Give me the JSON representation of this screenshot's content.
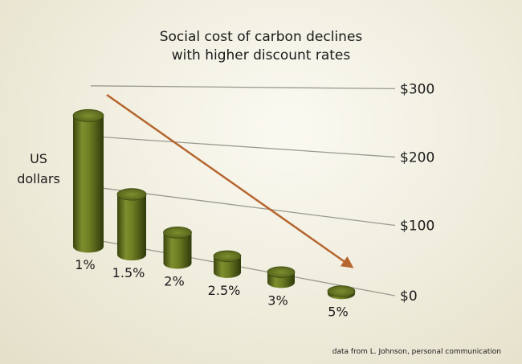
{
  "chart_data": {
    "type": "bar",
    "title_lines": [
      "Social cost of carbon declines",
      "with higher discount rates"
    ],
    "ylabel_lines": [
      "US",
      "dollars"
    ],
    "xlabel": "",
    "categories": [
      "1%",
      "1.5%",
      "2%",
      "2.5%",
      "3%",
      "5%"
    ],
    "values": [
      265,
      122,
      62,
      33,
      21,
      5
    ],
    "ylim": [
      0,
      300
    ],
    "yticks": [
      0,
      100,
      200,
      300
    ],
    "ytick_labels": [
      "$0",
      "$100",
      "$200",
      "$300"
    ],
    "grid": true,
    "trend_arrow": true,
    "source_note": "data from L. Johnson, personal communication",
    "colors": {
      "bar_dark": "#3d4a10",
      "bar_mid": "#7b8c2c",
      "bar_light": "#9aab45",
      "arrow": "#b5652e",
      "grid": "#9a9a90"
    }
  }
}
